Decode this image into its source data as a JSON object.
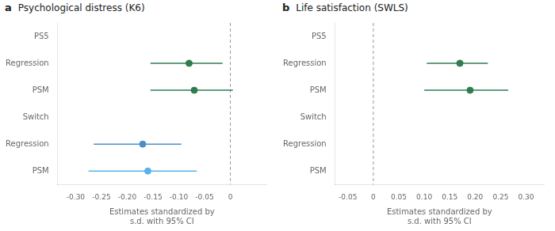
{
  "chart_data": [
    {
      "type": "scatter",
      "annotation": "a",
      "title": "Psychological distress (K6)",
      "categories": [
        "PS5",
        "Regression",
        "PSM",
        "Switch",
        "Regression",
        "PSM"
      ],
      "values": [
        null,
        -0.08,
        -0.07,
        null,
        -0.17,
        -0.16
      ],
      "ci_low": [
        null,
        -0.155,
        -0.155,
        null,
        -0.265,
        -0.275
      ],
      "ci_high": [
        null,
        -0.015,
        0.005,
        null,
        -0.095,
        -0.065
      ],
      "colors": [
        null,
        "#2e7d50",
        "#2e7d50",
        null,
        "#4a8fcb",
        "#5ab2e8"
      ],
      "xlim": [
        -0.335,
        0.07
      ],
      "xticks": [
        {
          "value": -0.3,
          "label": "-0.30"
        },
        -0.25,
        {
          "value": -0.2,
          "label": "-0.20"
        },
        -0.15,
        {
          "value": -0.1,
          "label": "-0.10"
        },
        -0.05,
        0
      ],
      "xlabel": "Estimates standardized by\ns.d. with 95% CI",
      "zero_line": 0,
      "grid": false
    },
    {
      "type": "scatter",
      "annotation": "b",
      "title": "Life satisfaction (SWLS)",
      "categories": [
        "PS5",
        "Regression",
        "PSM",
        "Switch",
        "Regression",
        "PSM"
      ],
      "values": [
        null,
        0.17,
        0.19,
        null,
        null,
        null
      ],
      "ci_low": [
        null,
        0.105,
        0.1,
        null,
        null,
        null
      ],
      "ci_high": [
        null,
        0.225,
        0.265,
        null,
        null,
        null
      ],
      "colors": [
        null,
        "#2e7d50",
        "#2e7d50",
        null,
        null,
        null
      ],
      "xlim": [
        -0.075,
        0.335
      ],
      "xticks": [
        -0.05,
        0,
        0.05,
        {
          "value": 0.1,
          "label": "0.10"
        },
        0.15,
        {
          "value": 0.2,
          "label": "0.20"
        },
        0.25,
        {
          "value": 0.3,
          "label": "0.30"
        }
      ],
      "xlabel": "Estimates standardized by\ns.d. with 95% CI",
      "zero_line": 0,
      "grid": false
    }
  ]
}
